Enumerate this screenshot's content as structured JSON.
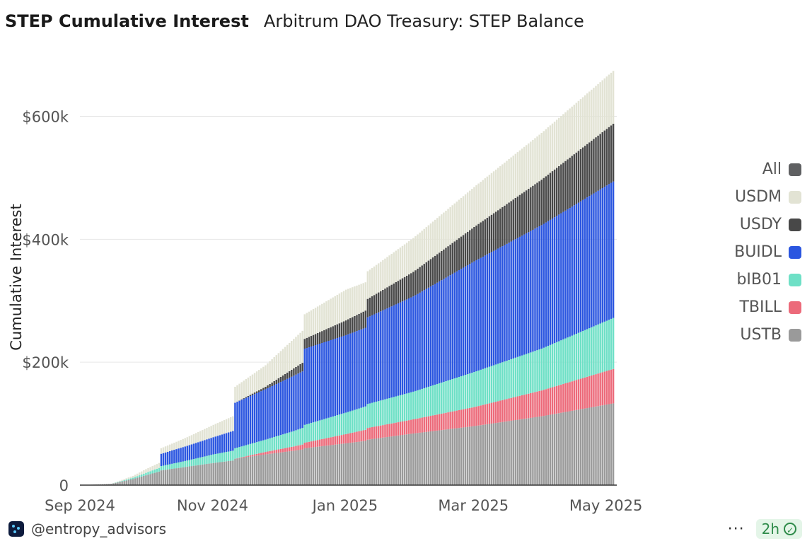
{
  "header": {
    "title": "STEP Cumulative Interest",
    "subtitle": "Arbitrum DAO Treasury: STEP Balance"
  },
  "footer": {
    "handle": "@entropy_advisors",
    "menu": "···",
    "badge": "2h",
    "check": "✓"
  },
  "legend": [
    {
      "label": "All",
      "color": "#5f6062"
    },
    {
      "label": "USDM",
      "color": "#e2e3d4"
    },
    {
      "label": "USDY",
      "color": "#484848"
    },
    {
      "label": "BUIDL",
      "color": "#2b56e0"
    },
    {
      "label": "bIB01",
      "color": "#6ee0c6"
    },
    {
      "label": "TBILL",
      "color": "#ec6a7a"
    },
    {
      "label": "USTB",
      "color": "#9a9a9a"
    }
  ],
  "chart_data": {
    "type": "bar",
    "stacked": true,
    "ylabel": "Cumulative Interest",
    "ylim": [
      0,
      680000
    ],
    "yticks": [
      {
        "value": 0,
        "label": "0"
      },
      {
        "value": 200000,
        "label": "$200k"
      },
      {
        "value": 400000,
        "label": "$400k"
      },
      {
        "value": 600000,
        "label": "$600k"
      }
    ],
    "xlim": [
      "2024-09-01",
      "2025-05-06"
    ],
    "xticks": [
      {
        "date": "2024-09-01",
        "label": "Sep 2024"
      },
      {
        "date": "2024-11-01",
        "label": "Nov 2024"
      },
      {
        "date": "2025-01-01",
        "label": "Jan 2025"
      },
      {
        "date": "2025-03-01",
        "label": "Mar 2025"
      },
      {
        "date": "2025-05-01",
        "label": "May 2025"
      }
    ],
    "grid": true,
    "legend_position": "right",
    "dates": [
      "2024-09-01",
      "2024-09-15",
      "2024-09-25",
      "2024-10-01",
      "2024-10-07",
      "2024-10-08",
      "2024-10-20",
      "2024-11-01",
      "2024-11-10",
      "2024-11-11",
      "2024-11-25",
      "2024-12-08",
      "2024-12-12",
      "2024-12-13",
      "2025-01-01",
      "2025-01-10",
      "2025-01-11",
      "2025-02-01",
      "2025-03-01",
      "2025-04-01",
      "2025-05-04"
    ],
    "series": [
      {
        "name": "USTB",
        "color": "#9a9a9a",
        "values": [
          0,
          2000,
          10000,
          16000,
          22000,
          24000,
          30000,
          36000,
          40000,
          43000,
          50000,
          56000,
          58000,
          60000,
          68000,
          72000,
          74000,
          84000,
          96000,
          112000,
          133000
        ]
      },
      {
        "name": "TBILL",
        "color": "#ec6a7a",
        "values": [
          0,
          0,
          0,
          0,
          0,
          0,
          0,
          0,
          0,
          0,
          4000,
          7000,
          8000,
          9000,
          15000,
          18000,
          19000,
          23000,
          31000,
          42000,
          56000
        ]
      },
      {
        "name": "bIB01",
        "color": "#6ee0c6",
        "values": [
          0,
          0,
          2000,
          4000,
          6000,
          7000,
          10000,
          14000,
          16000,
          17000,
          20000,
          25000,
          27000,
          29000,
          35000,
          38000,
          39000,
          45000,
          57000,
          68000,
          83000
        ]
      },
      {
        "name": "BUIDL",
        "color": "#2b56e0",
        "values": [
          0,
          0,
          0,
          0,
          0,
          20000,
          24000,
          28000,
          32000,
          74000,
          82000,
          90000,
          92000,
          124000,
          126000,
          128000,
          141000,
          155000,
          180000,
          201000,
          222000
        ]
      },
      {
        "name": "USDY",
        "color": "#484848",
        "values": [
          0,
          0,
          0,
          0,
          0,
          0,
          0,
          0,
          0,
          0,
          4000,
          12000,
          14000,
          16000,
          24000,
          28000,
          30000,
          40000,
          56000,
          74000,
          94000
        ]
      },
      {
        "name": "USDM",
        "color": "#e2e3d4",
        "values": [
          0,
          0,
          3000,
          6000,
          8000,
          9000,
          14000,
          20000,
          24000,
          26000,
          35000,
          48000,
          52000,
          40000,
          50000,
          46000,
          45000,
          55000,
          65000,
          76000,
          86000
        ]
      }
    ]
  }
}
